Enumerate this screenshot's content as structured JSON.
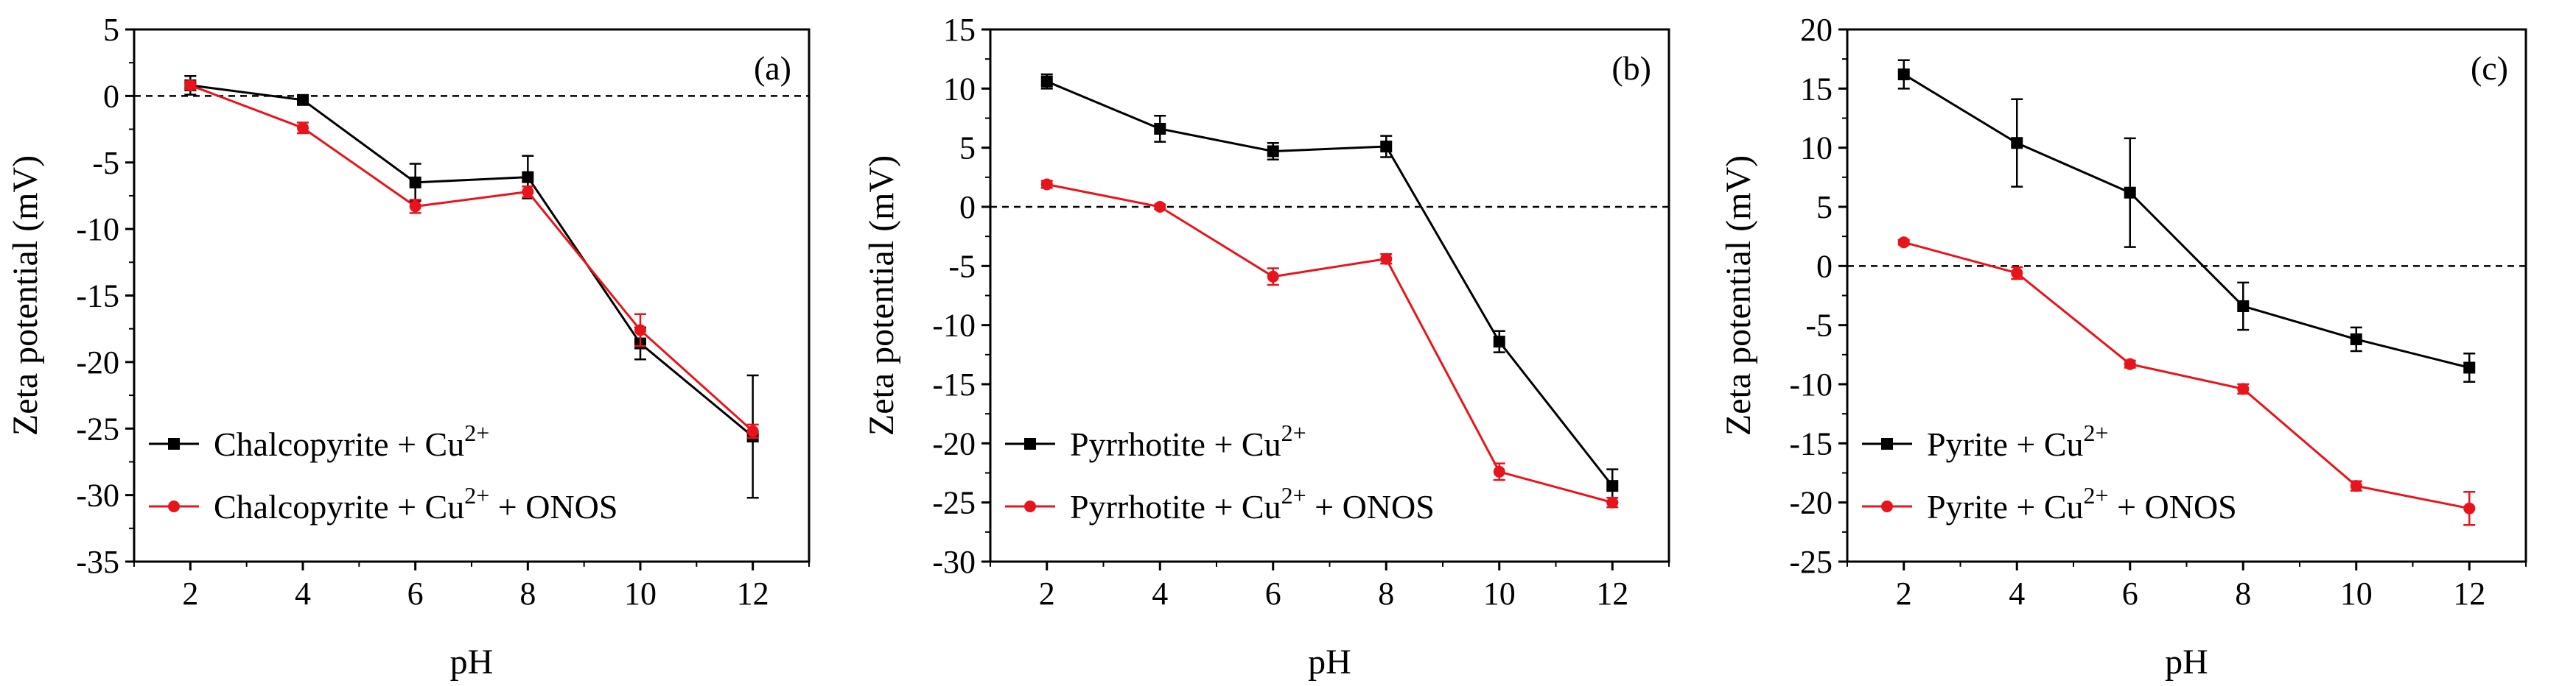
{
  "chart_data": [
    {
      "type": "line",
      "panel_label": "(a)",
      "xlabel": "pH",
      "ylabel": "Zeta potential (mV)",
      "x": [
        2,
        4,
        6,
        8,
        10,
        12
      ],
      "xticks": [
        "2",
        "4",
        "6",
        "8",
        "10",
        "12"
      ],
      "ylim": [
        -35,
        5
      ],
      "yticks": [
        "5",
        "0",
        "-5",
        "-10",
        "-15",
        "-20",
        "-25",
        "-30",
        "-35"
      ],
      "zero_line": true,
      "legend_position": "bottom-left",
      "series": [
        {
          "name_base": "Chalcopyrite + Cu",
          "name_sup": "2+",
          "name_tail": "",
          "color": "#000000",
          "marker": "square",
          "values": [
            0.8,
            -0.3,
            -6.5,
            -6.1,
            -18.6,
            -25.6
          ],
          "errors": [
            0.7,
            0.2,
            1.4,
            1.6,
            1.2,
            4.6
          ]
        },
        {
          "name_base": "Chalcopyrite + Cu",
          "name_sup": "2+",
          "name_tail": " + ONOS",
          "color": "#e8141c",
          "marker": "circle",
          "values": [
            0.8,
            -2.4,
            -8.3,
            -7.2,
            -17.6,
            -25.2
          ],
          "errors": [
            0.3,
            0.4,
            0.5,
            0.4,
            1.2,
            0.5
          ]
        }
      ]
    },
    {
      "type": "line",
      "panel_label": "(b)",
      "xlabel": "pH",
      "ylabel": "Zeta potential (mV)",
      "x": [
        2,
        4,
        6,
        8,
        10,
        12
      ],
      "xticks": [
        "2",
        "4",
        "6",
        "8",
        "10",
        "12"
      ],
      "ylim": [
        -30,
        15
      ],
      "yticks": [
        "15",
        "10",
        "5",
        "0",
        "-5",
        "-10",
        "-15",
        "-20",
        "-25",
        "-30"
      ],
      "zero_line": true,
      "legend_position": "bottom-left",
      "series": [
        {
          "name_base": "Pyrrhotite + Cu",
          "name_sup": "2+",
          "name_tail": "",
          "color": "#000000",
          "marker": "square",
          "values": [
            10.6,
            6.6,
            4.7,
            5.1,
            -11.4,
            -23.6
          ],
          "errors": [
            0.6,
            1.1,
            0.7,
            0.9,
            0.9,
            1.4
          ]
        },
        {
          "name_base": "Pyrrhotite + Cu",
          "name_sup": "2+",
          "name_tail": " + ONOS",
          "color": "#e8141c",
          "marker": "circle",
          "values": [
            1.9,
            0.0,
            -5.9,
            -4.4,
            -22.4,
            -25.0
          ],
          "errors": [
            0.3,
            0.2,
            0.7,
            0.4,
            0.7,
            0.4
          ]
        }
      ]
    },
    {
      "type": "line",
      "panel_label": "(c)",
      "xlabel": "pH",
      "ylabel": "Zeta potential (mV)",
      "x": [
        2,
        4,
        6,
        8,
        10,
        12
      ],
      "xticks": [
        "2",
        "4",
        "6",
        "8",
        "10",
        "12"
      ],
      "ylim": [
        -25,
        20
      ],
      "yticks": [
        "20",
        "15",
        "10",
        "5",
        "0",
        "-5",
        "-10",
        "-15",
        "-20",
        "-25"
      ],
      "zero_line": true,
      "legend_position": "bottom-left",
      "series": [
        {
          "name_base": "Pyrite + Cu",
          "name_sup": "2+",
          "name_tail": "",
          "color": "#000000",
          "marker": "square",
          "values": [
            16.2,
            10.4,
            6.2,
            -3.4,
            -6.2,
            -8.6
          ],
          "errors": [
            1.2,
            3.7,
            4.6,
            2.0,
            1.0,
            1.2
          ]
        },
        {
          "name_base": "Pyrite + Cu",
          "name_sup": "2+",
          "name_tail": " + ONOS",
          "color": "#e8141c",
          "marker": "circle",
          "values": [
            2.0,
            -0.6,
            -8.3,
            -10.4,
            -18.6,
            -20.5
          ],
          "errors": [
            0.2,
            0.5,
            0.3,
            0.4,
            0.4,
            1.4
          ]
        }
      ]
    }
  ]
}
